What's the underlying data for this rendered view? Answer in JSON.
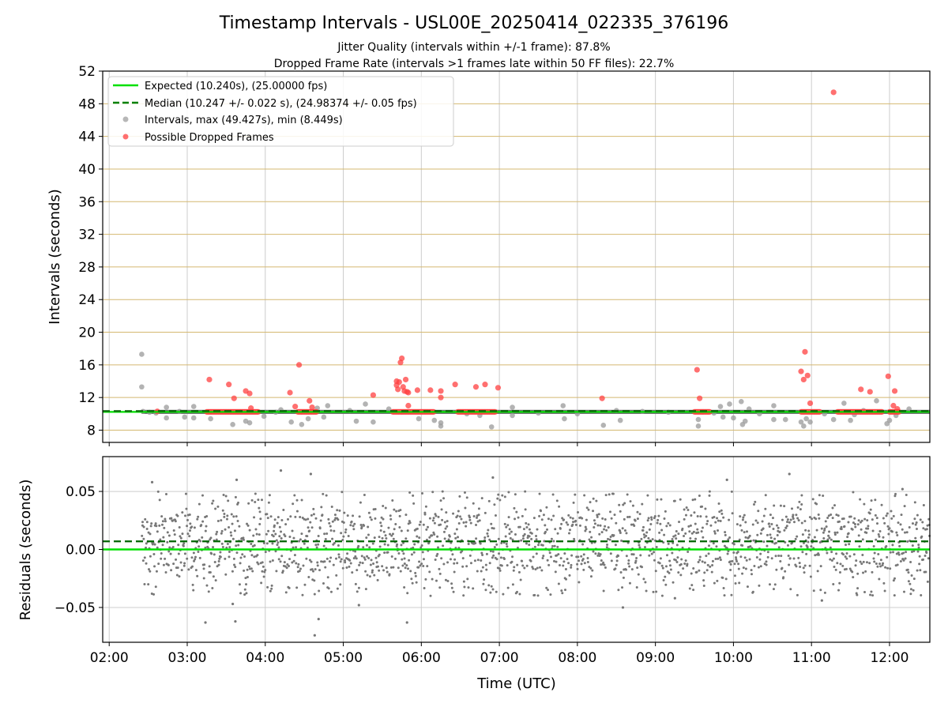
{
  "figure": {
    "title": "Timestamp Intervals - USL00E_20250414_022335_376196",
    "subtitle_1": "Jitter Quality (intervals within +/-1 frame): 87.8%",
    "subtitle_2": "Dropped Frame Rate (intervals >1 frames late within 50 FF files): 22.7%"
  },
  "chart_data": [
    {
      "type": "scatter",
      "ylabel": "Intervals (seconds)",
      "xlim": [
        "01:55",
        "12:31"
      ],
      "ylim": [
        6.5,
        52
      ],
      "yticks": [
        8,
        12,
        16,
        20,
        24,
        28,
        32,
        36,
        40,
        44,
        48,
        52
      ],
      "grid": {
        "x": true,
        "y": true,
        "y_color": "#d4b870",
        "x_color": "#cccccc"
      },
      "legend": {
        "placement": "top-left",
        "entries": [
          {
            "label": "Expected (10.240s), (25.00000 fps)",
            "style": "solid-line",
            "color": "#00e000"
          },
          {
            "label": "Median (10.247 +/- 0.022 s), (24.98374 +/- 0.05 fps)",
            "style": "dashed-line",
            "color": "#008000"
          },
          {
            "label": "Intervals, max (49.427s), min (8.449s)",
            "style": "marker",
            "color": "#999999"
          },
          {
            "label": "Possible Dropped Frames",
            "style": "marker",
            "color": "#ff4040"
          }
        ]
      },
      "reference_lines": {
        "expected": 10.24,
        "median": 10.247
      },
      "band": {
        "center": 10.24,
        "halfwidth": 0.25,
        "color": "#6e6e6e"
      },
      "series": [
        {
          "name": "Intervals, max (49.427s), min (8.449s)",
          "color": "#999999",
          "points": [
            [
              "02:25",
              17.3
            ],
            [
              "02:25",
              13.3
            ],
            [
              "02:26",
              10.3
            ],
            [
              "02:31",
              10.2
            ],
            [
              "02:36",
              10.1
            ],
            [
              "02:44",
              10.8
            ],
            [
              "02:44",
              9.5
            ],
            [
              "02:54",
              10.3
            ],
            [
              "02:58",
              9.6
            ],
            [
              "03:05",
              10.9
            ],
            [
              "03:05",
              9.5
            ],
            [
              "03:18",
              9.4
            ],
            [
              "03:35",
              8.7
            ],
            [
              "03:45",
              9.1
            ],
            [
              "03:48",
              8.9
            ],
            [
              "03:59",
              9.7
            ],
            [
              "04:08",
              10.2
            ],
            [
              "04:12",
              10.5
            ],
            [
              "04:20",
              9.0
            ],
            [
              "04:28",
              8.7
            ],
            [
              "04:33",
              9.4
            ],
            [
              "04:40",
              10.7
            ],
            [
              "04:45",
              9.6
            ],
            [
              "04:48",
              11.0
            ],
            [
              "05:05",
              10.4
            ],
            [
              "05:10",
              9.1
            ],
            [
              "05:17",
              11.2
            ],
            [
              "05:23",
              9.0
            ],
            [
              "05:35",
              10.6
            ],
            [
              "05:58",
              9.4
            ],
            [
              "06:10",
              9.2
            ],
            [
              "06:15",
              8.9
            ],
            [
              "06:15",
              8.5
            ],
            [
              "06:35",
              10.0
            ],
            [
              "06:45",
              9.8
            ],
            [
              "06:54",
              8.4
            ],
            [
              "07:10",
              10.8
            ],
            [
              "07:10",
              9.8
            ],
            [
              "07:30",
              10.1
            ],
            [
              "07:49",
              11.0
            ],
            [
              "07:50",
              9.4
            ],
            [
              "08:00",
              10.0
            ],
            [
              "08:20",
              8.6
            ],
            [
              "08:30",
              10.4
            ],
            [
              "08:33",
              9.2
            ],
            [
              "08:50",
              10.3
            ],
            [
              "09:10",
              10.2
            ],
            [
              "09:33",
              9.3
            ],
            [
              "09:33",
              8.5
            ],
            [
              "09:45",
              10.1
            ],
            [
              "09:50",
              10.9
            ],
            [
              "09:52",
              9.6
            ],
            [
              "09:57",
              11.2
            ],
            [
              "10:00",
              9.5
            ],
            [
              "10:06",
              11.5
            ],
            [
              "10:07",
              8.7
            ],
            [
              "10:09",
              9.1
            ],
            [
              "10:12",
              10.6
            ],
            [
              "10:20",
              10.0
            ],
            [
              "10:31",
              11.0
            ],
            [
              "10:31",
              9.3
            ],
            [
              "10:40",
              9.3
            ],
            [
              "10:52",
              9.0
            ],
            [
              "10:54",
              8.5
            ],
            [
              "10:56",
              9.4
            ],
            [
              "10:59",
              9.0
            ],
            [
              "11:10",
              10.0
            ],
            [
              "11:17",
              9.3
            ],
            [
              "11:25",
              11.3
            ],
            [
              "11:30",
              9.2
            ],
            [
              "11:33",
              9.9
            ],
            [
              "11:40",
              10.4
            ],
            [
              "11:50",
              11.6
            ],
            [
              "11:58",
              8.8
            ],
            [
              "12:00",
              9.2
            ],
            [
              "12:05",
              9.8
            ],
            [
              "12:15",
              10.6
            ]
          ]
        },
        {
          "name": "Possible Dropped Frames",
          "color": "#ff4040",
          "points": [
            [
              "02:37",
              10.3
            ],
            [
              "03:17",
              14.2
            ],
            [
              "03:32",
              13.6
            ],
            [
              "03:36",
              11.9
            ],
            [
              "03:45",
              12.8
            ],
            [
              "03:48",
              12.5
            ],
            [
              "03:49",
              10.7
            ],
            [
              "04:19",
              12.6
            ],
            [
              "04:23",
              10.9
            ],
            [
              "04:26",
              16.0
            ],
            [
              "04:34",
              11.6
            ],
            [
              "04:36",
              10.8
            ],
            [
              "05:23",
              12.3
            ],
            [
              "05:41",
              14.0
            ],
            [
              "05:41",
              13.5
            ],
            [
              "05:42",
              13.0
            ],
            [
              "05:43",
              13.9
            ],
            [
              "05:44",
              16.3
            ],
            [
              "05:45",
              16.8
            ],
            [
              "05:46",
              13.3
            ],
            [
              "05:47",
              12.8
            ],
            [
              "05:48",
              14.2
            ],
            [
              "05:49",
              12.7
            ],
            [
              "05:50",
              11.0
            ],
            [
              "05:50",
              12.6
            ],
            [
              "05:57",
              12.9
            ],
            [
              "06:07",
              12.9
            ],
            [
              "06:15",
              12.8
            ],
            [
              "06:15",
              12.0
            ],
            [
              "06:26",
              13.6
            ],
            [
              "06:42",
              13.3
            ],
            [
              "06:49",
              13.6
            ],
            [
              "06:59",
              13.2
            ],
            [
              "08:19",
              11.9
            ],
            [
              "09:32",
              15.4
            ],
            [
              "09:34",
              11.9
            ],
            [
              "10:52",
              15.2
            ],
            [
              "10:54",
              14.2
            ],
            [
              "10:55",
              17.6
            ],
            [
              "10:57",
              14.7
            ],
            [
              "10:59",
              11.3
            ],
            [
              "11:17",
              49.4
            ],
            [
              "11:38",
              13.0
            ],
            [
              "11:45",
              12.7
            ],
            [
              "11:59",
              14.6
            ],
            [
              "12:04",
              12.8
            ],
            [
              "12:03",
              11.0
            ],
            [
              "12:06",
              10.6
            ]
          ],
          "clusters": [
            [
              "03:15",
              "03:55",
              10.24
            ],
            [
              "04:25",
              "04:40",
              10.24
            ],
            [
              "05:38",
              "06:10",
              10.24
            ],
            [
              "06:28",
              "06:57",
              10.24
            ],
            [
              "09:30",
              "09:42",
              10.24
            ],
            [
              "10:52",
              "11:07",
              10.24
            ],
            [
              "11:20",
              "11:55",
              10.24
            ],
            [
              "12:00",
              "12:08",
              10.24
            ]
          ]
        }
      ]
    },
    {
      "type": "scatter",
      "xlabel": "Time (UTC)",
      "ylabel": "Residuals (seconds)",
      "xlim": [
        "01:55",
        "12:31"
      ],
      "ylim": [
        -0.08,
        0.08
      ],
      "yticks": [
        0.05,
        0.0,
        -0.05
      ],
      "ytick_labels": [
        "0.05",
        "0.00",
        "−0.05"
      ],
      "xticks": [
        "02:00",
        "03:00",
        "04:00",
        "05:00",
        "06:00",
        "07:00",
        "08:00",
        "09:00",
        "10:00",
        "11:00",
        "12:00"
      ],
      "grid": {
        "x": true,
        "y": true,
        "color": "#cccccc"
      },
      "reference_lines": {
        "expected": 0.0,
        "median": 0.007
      },
      "series": [
        {
          "name": "",
          "color": "#777777",
          "x_start": "02:25",
          "x_end": "12:31",
          "count": 1900,
          "typical_range": [
            -0.04,
            0.05
          ],
          "outliers": [
            [
              "02:33",
              0.058
            ],
            [
              "03:14",
              -0.063
            ],
            [
              "03:38",
              0.06
            ],
            [
              "03:35",
              -0.047
            ],
            [
              "03:37",
              -0.062
            ],
            [
              "04:12",
              0.068
            ],
            [
              "04:35",
              0.065
            ],
            [
              "04:38",
              -0.074
            ],
            [
              "04:41",
              -0.06
            ],
            [
              "05:12",
              -0.048
            ],
            [
              "05:49",
              -0.063
            ],
            [
              "06:55",
              0.062
            ],
            [
              "08:35",
              -0.05
            ],
            [
              "09:15",
              -0.042
            ],
            [
              "09:55",
              0.06
            ],
            [
              "10:43",
              0.065
            ],
            [
              "11:08",
              -0.044
            ],
            [
              "12:10",
              0.052
            ]
          ]
        }
      ]
    }
  ]
}
